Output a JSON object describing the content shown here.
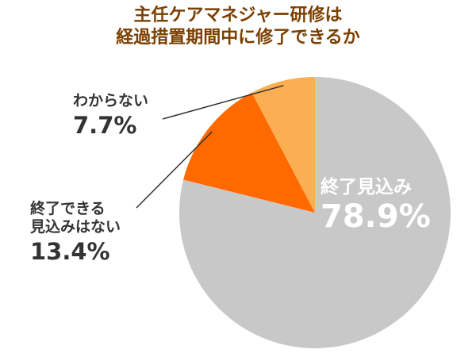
{
  "chart_data": {
    "type": "pie",
    "title_lines": [
      "主任ケアマネジャー研修は",
      "経過措置期間中に修了できるか"
    ],
    "slices": [
      {
        "label": "終了見込み",
        "value": 78.9,
        "display": "78.9%",
        "color": "#c8c8c8"
      },
      {
        "label_lines": [
          "終了できる",
          "見込みはない"
        ],
        "value": 13.4,
        "display": "13.4%",
        "color": "#ff6a00"
      },
      {
        "label": "わからない",
        "value": 7.7,
        "display": "7.7%",
        "color": "#fcaf52"
      }
    ],
    "leader_line_color": "#333333"
  }
}
